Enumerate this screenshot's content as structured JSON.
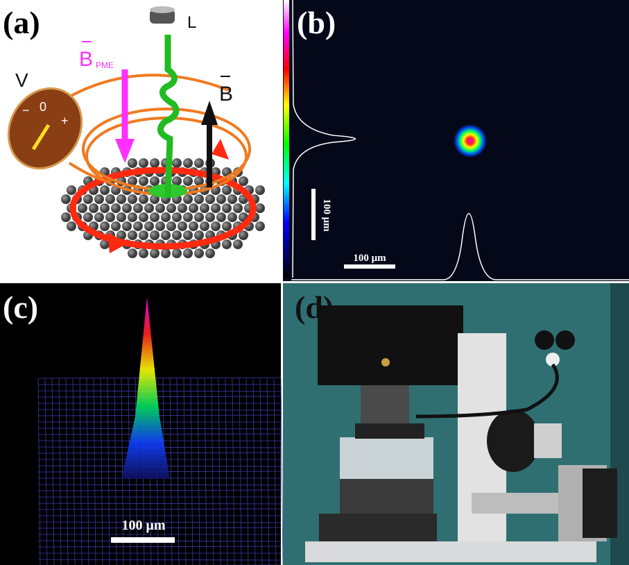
{
  "panels": [
    {
      "label": "(a)",
      "lens": "L",
      "pme_field": "B",
      "pme_subscript": "PME",
      "voltmeter": "V",
      "minus": "−",
      "zero": "0",
      "plus": "+",
      "field": "B"
    },
    {
      "label": "(b)",
      "scale_vertical": "100 μm",
      "scale_horizontal": "100 μm"
    },
    {
      "label": "(c)",
      "scale": "100 μm"
    },
    {
      "label": "(d)"
    }
  ]
}
